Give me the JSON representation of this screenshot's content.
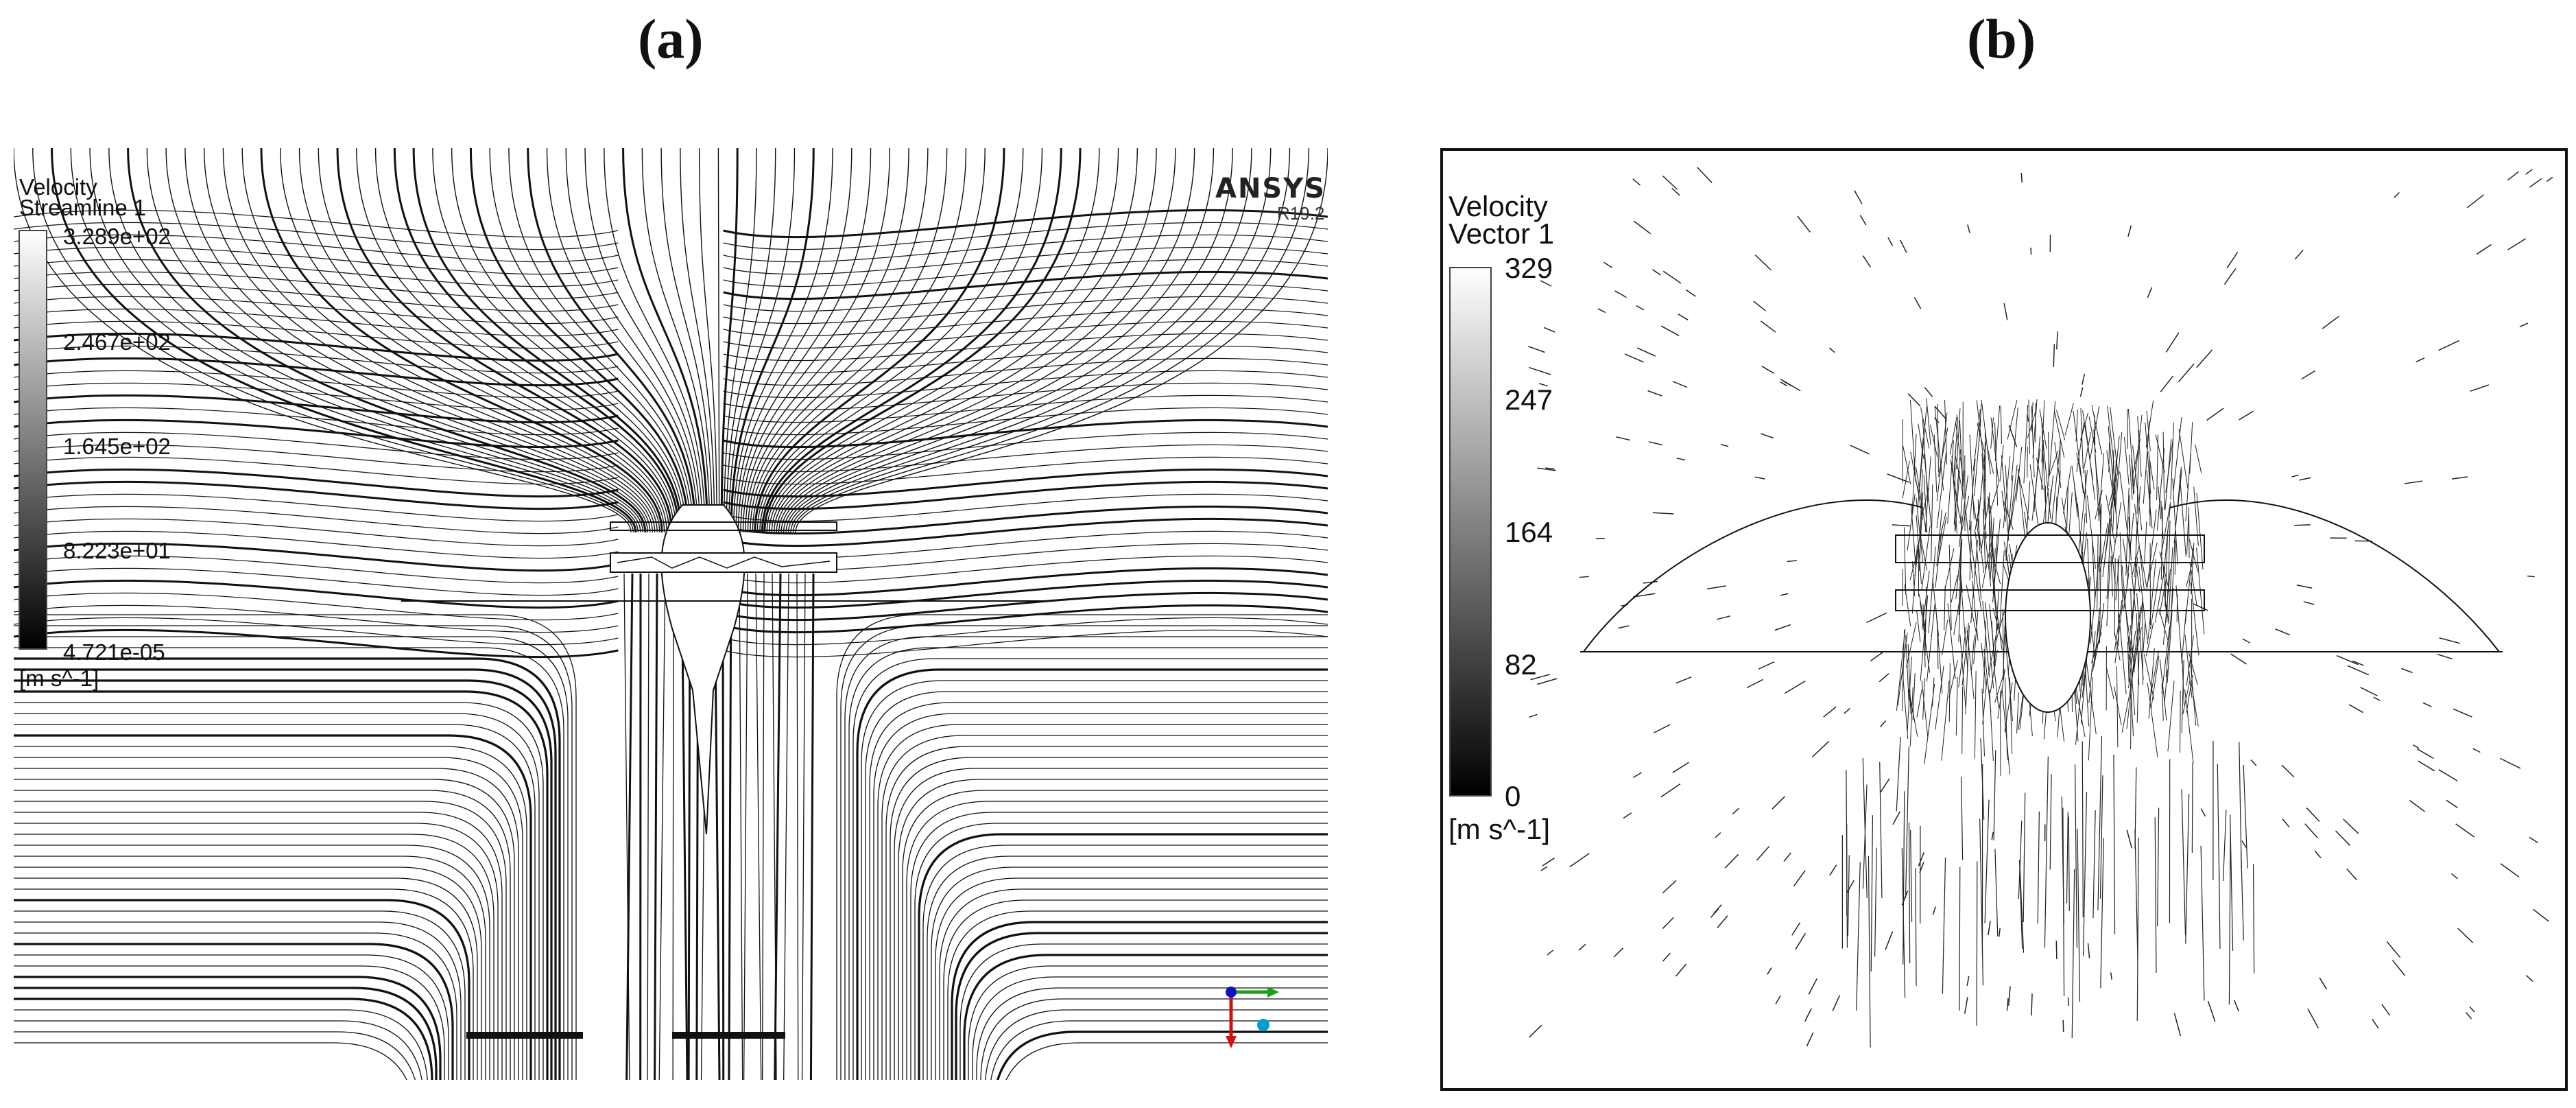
{
  "panels": {
    "a": {
      "letter": "(a)",
      "legend_title_1": "Velocity",
      "legend_title_2": "Streamline 1",
      "ticks": [
        "3.289e+02",
        "2.467e+02",
        "1.645e+02",
        "8.223e+01",
        "4.721e-05"
      ],
      "unit": "[m s^-1]",
      "brand": "ANSYS",
      "version": "R19.2"
    },
    "b": {
      "letter": "(b)",
      "legend_title_1": "Velocity",
      "legend_title_2": "Vector 1",
      "ticks": [
        "329",
        "247",
        "164",
        "82",
        "0"
      ],
      "unit": "[m s^-1]"
    }
  },
  "colors": {
    "line": "#111111",
    "axis_x": "#1aa01a",
    "axis_y": "#d01010",
    "axis_z": "#00a0d0",
    "axis_origin": "#1010c0"
  }
}
